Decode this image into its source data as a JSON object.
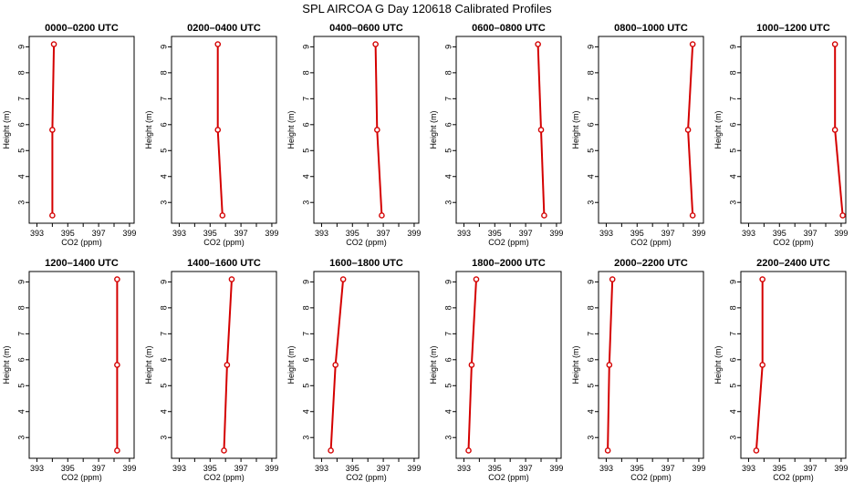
{
  "figure_title": "SPL AIRCOA G  Day 120618  Calibrated Profiles",
  "chart_data": [
    {
      "type": "line",
      "title": "0000–0200 UTC",
      "xlabel": "CO2 (ppm)",
      "ylabel": "Height (m)",
      "xlim": [
        392.5,
        399.3
      ],
      "ylim": [
        2.2,
        9.4
      ],
      "xticks": [
        "393",
        "395",
        "397",
        "399"
      ],
      "yticks": [
        "3",
        "4",
        "5",
        "6",
        "7",
        "8",
        "9"
      ],
      "x": [
        394.1,
        394.0,
        394.0
      ],
      "y": [
        9.1,
        5.8,
        2.5
      ],
      "color": "#d40000"
    },
    {
      "type": "line",
      "title": "0200–0400 UTC",
      "xlabel": "CO2 (ppm)",
      "ylabel": "Height (m)",
      "xlim": [
        392.5,
        399.3
      ],
      "ylim": [
        2.2,
        9.4
      ],
      "xticks": [
        "393",
        "395",
        "397",
        "399"
      ],
      "yticks": [
        "3",
        "4",
        "5",
        "6",
        "7",
        "8",
        "9"
      ],
      "x": [
        395.5,
        395.5,
        395.8
      ],
      "y": [
        9.1,
        5.8,
        2.5
      ],
      "color": "#d40000"
    },
    {
      "type": "line",
      "title": "0400–0600 UTC",
      "xlabel": "CO2 (ppm)",
      "ylabel": "Height (m)",
      "xlim": [
        392.5,
        399.3
      ],
      "ylim": [
        2.2,
        9.4
      ],
      "xticks": [
        "393",
        "395",
        "397",
        "399"
      ],
      "yticks": [
        "3",
        "4",
        "5",
        "6",
        "7",
        "8",
        "9"
      ],
      "x": [
        396.5,
        396.6,
        396.9
      ],
      "y": [
        9.1,
        5.8,
        2.5
      ],
      "color": "#d40000"
    },
    {
      "type": "line",
      "title": "0600–0800 UTC",
      "xlabel": "CO2 (ppm)",
      "ylabel": "Height (m)",
      "xlim": [
        392.5,
        399.3
      ],
      "ylim": [
        2.2,
        9.4
      ],
      "xticks": [
        "393",
        "395",
        "397",
        "399"
      ],
      "yticks": [
        "3",
        "4",
        "5",
        "6",
        "7",
        "8",
        "9"
      ],
      "x": [
        397.8,
        398.0,
        398.2
      ],
      "y": [
        9.1,
        5.8,
        2.5
      ],
      "color": "#d40000"
    },
    {
      "type": "line",
      "title": "0800–1000 UTC",
      "xlabel": "CO2 (ppm)",
      "ylabel": "Height (m)",
      "xlim": [
        392.5,
        399.3
      ],
      "ylim": [
        2.2,
        9.4
      ],
      "xticks": [
        "393",
        "395",
        "397",
        "399"
      ],
      "yticks": [
        "3",
        "4",
        "5",
        "6",
        "7",
        "8",
        "9"
      ],
      "x": [
        398.6,
        398.3,
        398.6
      ],
      "y": [
        9.1,
        5.8,
        2.5
      ],
      "color": "#d40000"
    },
    {
      "type": "line",
      "title": "1000–1200 UTC",
      "xlabel": "CO2 (ppm)",
      "ylabel": "Height (m)",
      "xlim": [
        392.5,
        399.3
      ],
      "ylim": [
        2.2,
        9.4
      ],
      "xticks": [
        "393",
        "395",
        "397",
        "399"
      ],
      "yticks": [
        "3",
        "4",
        "5",
        "6",
        "7",
        "8",
        "9"
      ],
      "x": [
        398.6,
        398.6,
        399.1
      ],
      "y": [
        9.1,
        5.8,
        2.5
      ],
      "color": "#d40000"
    },
    {
      "type": "line",
      "title": "1200–1400 UTC",
      "xlabel": "CO2 (ppm)",
      "ylabel": "Height (m)",
      "xlim": [
        392.5,
        399.3
      ],
      "ylim": [
        2.2,
        9.4
      ],
      "xticks": [
        "393",
        "395",
        "397",
        "399"
      ],
      "yticks": [
        "3",
        "4",
        "5",
        "6",
        "7",
        "8",
        "9"
      ],
      "x": [
        398.2,
        398.2,
        398.2
      ],
      "y": [
        9.1,
        5.8,
        2.5
      ],
      "color": "#d40000"
    },
    {
      "type": "line",
      "title": "1400–1600 UTC",
      "xlabel": "CO2 (ppm)",
      "ylabel": "Height (m)",
      "xlim": [
        392.5,
        399.3
      ],
      "ylim": [
        2.2,
        9.4
      ],
      "xticks": [
        "393",
        "395",
        "397",
        "399"
      ],
      "yticks": [
        "3",
        "4",
        "5",
        "6",
        "7",
        "8",
        "9"
      ],
      "x": [
        396.4,
        396.1,
        395.9
      ],
      "y": [
        9.1,
        5.8,
        2.5
      ],
      "color": "#d40000"
    },
    {
      "type": "line",
      "title": "1600–1800 UTC",
      "xlabel": "CO2 (ppm)",
      "ylabel": "Height (m)",
      "xlim": [
        392.5,
        399.3
      ],
      "ylim": [
        2.2,
        9.4
      ],
      "xticks": [
        "393",
        "395",
        "397",
        "399"
      ],
      "yticks": [
        "3",
        "4",
        "5",
        "6",
        "7",
        "8",
        "9"
      ],
      "x": [
        394.4,
        393.9,
        393.6
      ],
      "y": [
        9.1,
        5.8,
        2.5
      ],
      "color": "#d40000"
    },
    {
      "type": "line",
      "title": "1800–2000 UTC",
      "xlabel": "CO2 (ppm)",
      "ylabel": "Height (m)",
      "xlim": [
        392.5,
        399.3
      ],
      "ylim": [
        2.2,
        9.4
      ],
      "xticks": [
        "393",
        "395",
        "397",
        "399"
      ],
      "yticks": [
        "3",
        "4",
        "5",
        "6",
        "7",
        "8",
        "9"
      ],
      "x": [
        393.8,
        393.5,
        393.3
      ],
      "y": [
        9.1,
        5.8,
        2.5
      ],
      "color": "#d40000"
    },
    {
      "type": "line",
      "title": "2000–2200 UTC",
      "xlabel": "CO2 (ppm)",
      "ylabel": "Height (m)",
      "xlim": [
        392.5,
        399.3
      ],
      "ylim": [
        2.2,
        9.4
      ],
      "xticks": [
        "393",
        "395",
        "397",
        "399"
      ],
      "yticks": [
        "3",
        "4",
        "5",
        "6",
        "7",
        "8",
        "9"
      ],
      "x": [
        393.4,
        393.2,
        393.1
      ],
      "y": [
        9.1,
        5.8,
        2.5
      ],
      "color": "#d40000"
    },
    {
      "type": "line",
      "title": "2200–2400 UTC",
      "xlabel": "CO2 (ppm)",
      "ylabel": "Height (m)",
      "xlim": [
        392.5,
        399.3
      ],
      "ylim": [
        2.2,
        9.4
      ],
      "xticks": [
        "393",
        "395",
        "397",
        "399"
      ],
      "yticks": [
        "3",
        "4",
        "5",
        "6",
        "7",
        "8",
        "9"
      ],
      "x": [
        393.9,
        393.9,
        393.5
      ],
      "y": [
        9.1,
        5.8,
        2.5
      ],
      "color": "#d40000"
    }
  ]
}
